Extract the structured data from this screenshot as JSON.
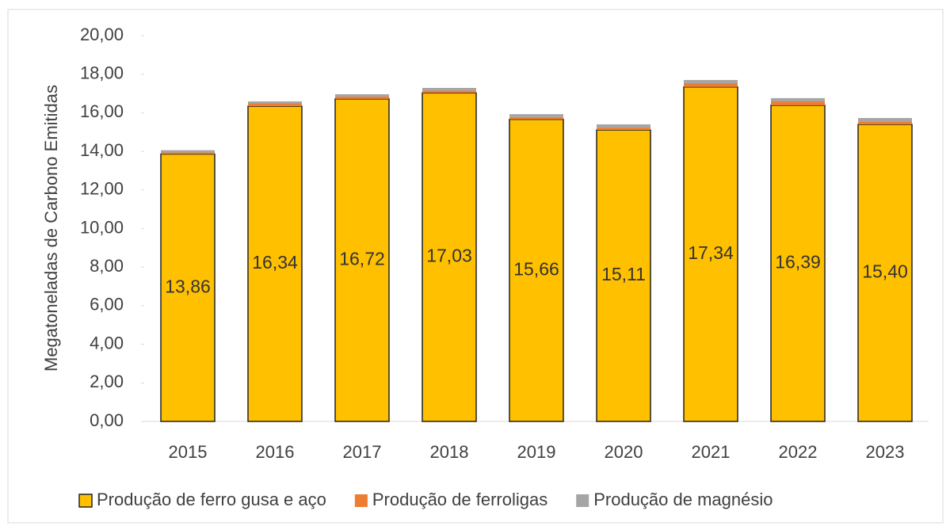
{
  "chart_data": {
    "type": "stacked_bar",
    "y_label": "Megatoneladas de Carbono Emitidas",
    "categories": [
      "2015",
      "2016",
      "2017",
      "2018",
      "2019",
      "2020",
      "2021",
      "2022",
      "2023"
    ],
    "series": [
      {
        "name": "Produção de ferro gusa e aço",
        "color": "#ffc000",
        "values": [
          13.86,
          16.34,
          16.72,
          17.03,
          15.66,
          15.11,
          17.34,
          16.39,
          15.4
        ],
        "value_labels": [
          "13,86",
          "16,34",
          "16,72",
          "17,03",
          "15,66",
          "15,11",
          "17,34",
          "16,39",
          "15,40"
        ]
      },
      {
        "name": "Produção de ferroligas",
        "color": "#ed7d31",
        "values": [
          0.08,
          0.15,
          0.12,
          0.12,
          0.12,
          0.12,
          0.2,
          0.2,
          0.15
        ]
      },
      {
        "name": "Produção de magnésio",
        "color": "#a5a5a5",
        "values": [
          0.12,
          0.1,
          0.12,
          0.14,
          0.15,
          0.17,
          0.16,
          0.17,
          0.18
        ]
      }
    ],
    "ylim": [
      0,
      20
    ],
    "yticks": [
      {
        "value": 0,
        "label": "0,00"
      },
      {
        "value": 2,
        "label": "2,00"
      },
      {
        "value": 4,
        "label": "4,00"
      },
      {
        "value": 6,
        "label": "6,00"
      },
      {
        "value": 8,
        "label": "8,00"
      },
      {
        "value": 10,
        "label": "10,00"
      },
      {
        "value": 12,
        "label": "12,00"
      },
      {
        "value": 14,
        "label": "14,00"
      },
      {
        "value": 16,
        "label": "16,00"
      },
      {
        "value": 18,
        "label": "18,00"
      },
      {
        "value": 20,
        "label": "20,00"
      }
    ],
    "legend": "bottom"
  }
}
